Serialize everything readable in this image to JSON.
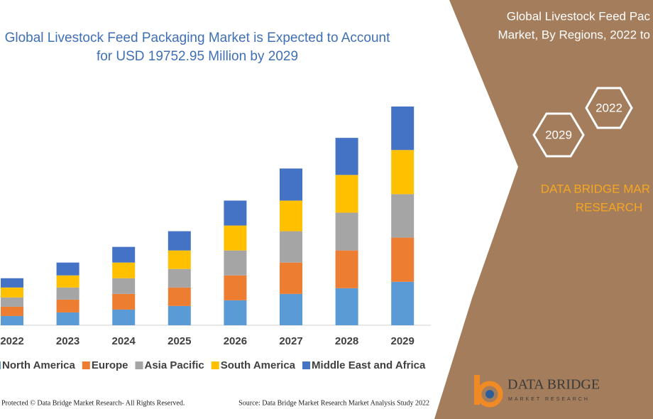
{
  "chart_data": {
    "type": "bar",
    "stacked": true,
    "title": [
      "Global Livestock Feed Packaging Market is Expected to Account",
      "for USD 19752.95 Million by 2029"
    ],
    "categories": [
      "2022",
      "2023",
      "2024",
      "2025",
      "2026",
      "2027",
      "2028",
      "2029"
    ],
    "series": [
      {
        "name": "North America",
        "color": "#5b9bd5",
        "values": [
          13,
          18,
          22,
          27,
          35,
          44,
          52,
          61
        ]
      },
      {
        "name": "Europe",
        "color": "#ed7d31",
        "values": [
          13,
          18,
          22,
          26,
          35,
          44,
          53,
          62
        ]
      },
      {
        "name": "Asia Pacific",
        "color": "#a5a5a5",
        "values": [
          13,
          17,
          22,
          26,
          35,
          44,
          53,
          61
        ]
      },
      {
        "name": "South America",
        "color": "#ffc000",
        "values": [
          14,
          17,
          22,
          26,
          35,
          43,
          53,
          62
        ]
      },
      {
        "name": "Middle East and Africa",
        "color": "#4472c4",
        "values": [
          13,
          18,
          22,
          27,
          35,
          45,
          52,
          61
        ]
      }
    ]
  },
  "side_panel": {
    "title_lines": [
      "Global Livestock Feed Pac",
      "Market, By Regions, 2022 to"
    ],
    "hexagons": [
      "2022",
      "2029"
    ],
    "brand_lines": [
      "DATA BRIDGE MAR",
      "RESEARCH"
    ]
  },
  "logo": {
    "name": "DATA BRIDGE",
    "tagline": "MARKET RESEARCH"
  },
  "footer": {
    "copyright": "Protected © Data Bridge Market Research- All Rights Reserved.",
    "source": "Source: Data Bridge Market Research Market Analysis Study 2022"
  }
}
